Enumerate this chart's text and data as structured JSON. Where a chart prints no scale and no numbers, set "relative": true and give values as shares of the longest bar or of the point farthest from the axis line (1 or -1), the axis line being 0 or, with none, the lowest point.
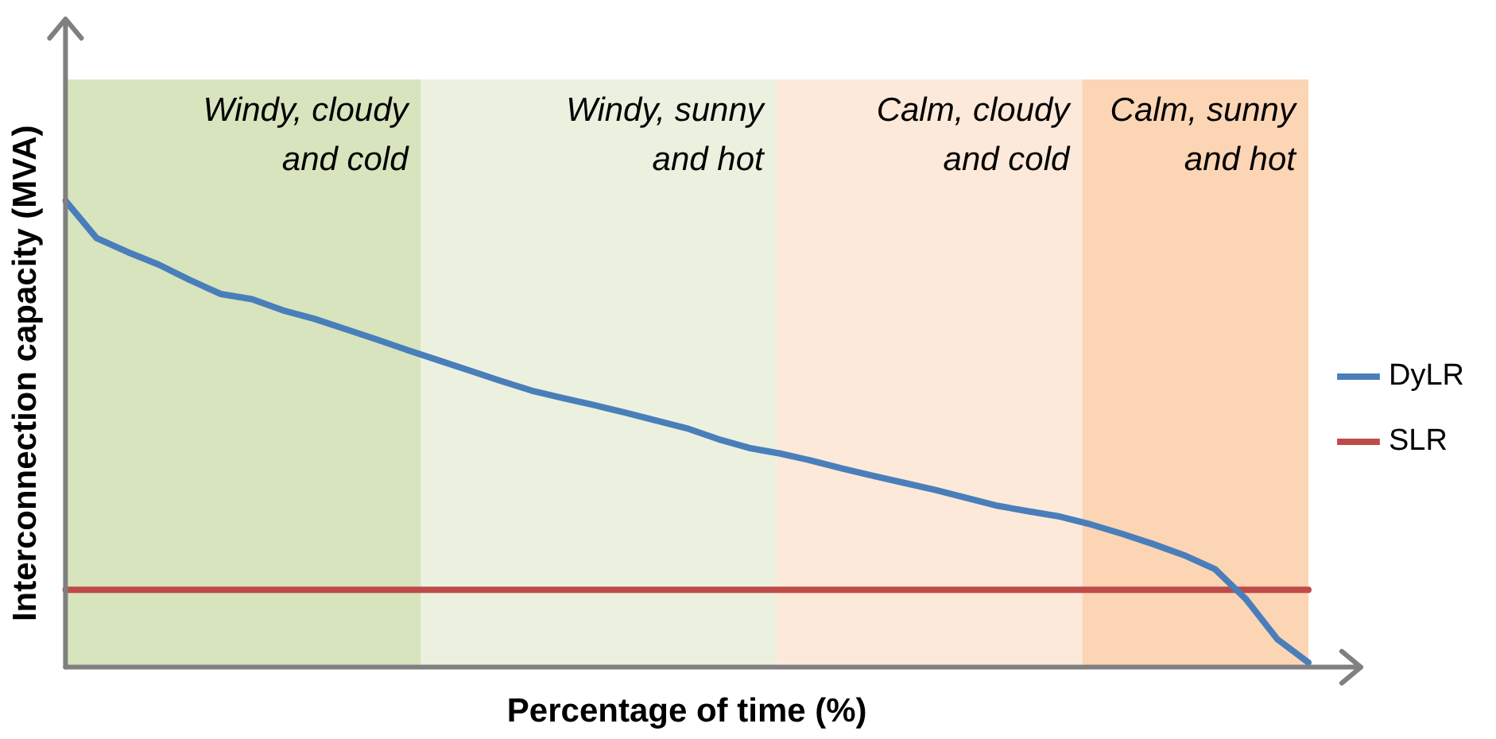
{
  "chart_data": {
    "type": "line",
    "relative": true,
    "xlabel": "Percentage of time (%)",
    "ylabel": "Interconnection capacity (MVA)",
    "legend": "right",
    "marker": "none",
    "line_style": "solid",
    "categories": [
      null,
      null,
      null,
      null,
      null,
      null,
      null,
      null,
      null,
      null,
      null,
      null,
      null,
      null,
      null,
      null,
      null,
      null,
      null,
      null,
      null,
      null,
      null,
      null,
      null,
      null,
      null,
      null,
      null,
      null,
      null,
      null,
      null,
      null,
      null,
      null,
      null,
      null,
      null,
      null,
      null
    ],
    "series": [
      {
        "name": "DyLR",
        "color": "#4a7ebb",
        "values": [
          1.0,
          0.92,
          0.89,
          0.863,
          0.83,
          0.8,
          0.789,
          0.765,
          0.747,
          0.725,
          0.703,
          0.68,
          0.658,
          0.636,
          0.614,
          0.593,
          0.577,
          0.562,
          0.546,
          0.529,
          0.512,
          0.489,
          0.47,
          0.458,
          0.443,
          0.426,
          0.41,
          0.395,
          0.38,
          0.363,
          0.346,
          0.334,
          0.323,
          0.306,
          0.286,
          0.264,
          0.24,
          0.21,
          0.145,
          0.06,
          0.01
        ]
      },
      {
        "name": "SLR",
        "color": "#be4b48",
        "values": [
          0.166,
          0.166,
          0.166,
          0.166,
          0.166,
          0.166,
          0.166,
          0.166,
          0.166,
          0.166,
          0.166,
          0.166,
          0.166,
          0.166,
          0.166,
          0.166,
          0.166,
          0.166,
          0.166,
          0.166,
          0.166,
          0.166,
          0.166,
          0.166,
          0.166,
          0.166,
          0.166,
          0.166,
          0.166,
          0.166,
          0.166,
          0.166,
          0.166,
          0.166,
          0.166,
          0.166,
          0.166,
          0.166,
          0.166,
          0.166,
          0.166
        ]
      }
    ],
    "annotations": [
      "Windy, cloudy\nand cold",
      "Windy, sunny\nand hot",
      "Calm, cloudy\nand cold",
      "Calm, sunny\nand hot"
    ]
  }
}
